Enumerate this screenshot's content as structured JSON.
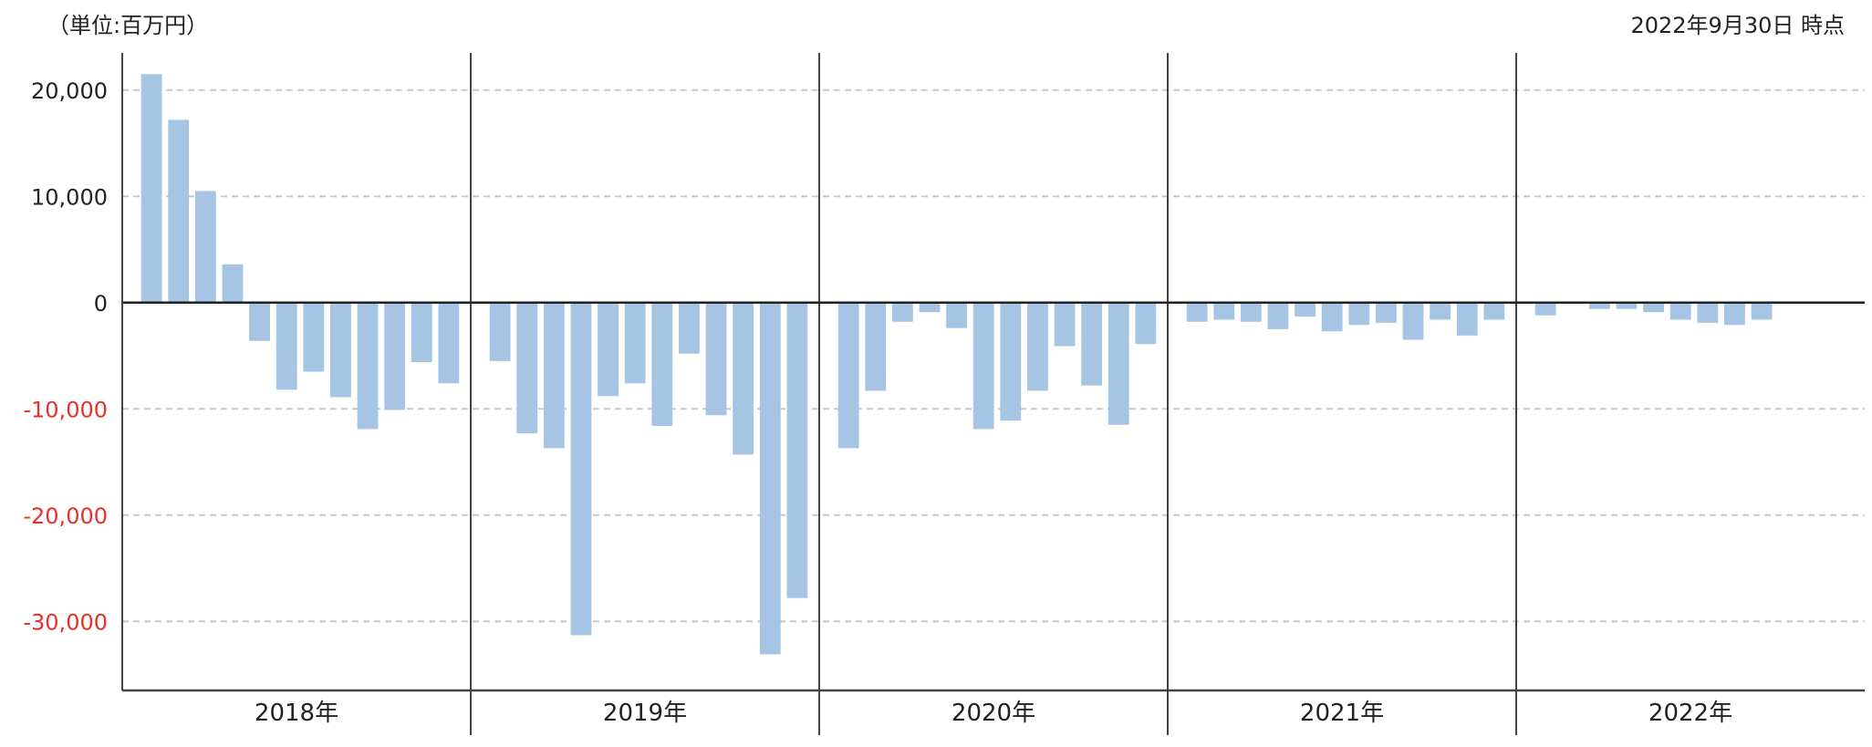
{
  "header": {
    "unit_label": "（単位:百万円）",
    "as_of_label": "2022年9月30日 時点"
  },
  "colors": {
    "bar": "#a6c4e3",
    "negative_tick": "#e8302a",
    "positive_tick": "#222222",
    "grid": "#c8c8c8",
    "axis": "#444444"
  },
  "chart_data": {
    "type": "bar",
    "ylim": [
      -36500,
      23500
    ],
    "yticks": [
      20000,
      10000,
      0,
      -10000,
      -20000,
      -30000
    ],
    "ytick_labels": [
      "20,000",
      "10,000",
      "0",
      "-10,000",
      "-20,000",
      "-30,000"
    ],
    "grid": "horizontal dashed",
    "years": [
      {
        "label": "2018年",
        "values": [
          21500,
          17200,
          10500,
          3600,
          -3600,
          -8200,
          -6500,
          -8900,
          -11900,
          -10100,
          -5600,
          -7600
        ]
      },
      {
        "label": "2019年",
        "values": [
          -5500,
          -12300,
          -13700,
          -31300,
          -8800,
          -7600,
          -11600,
          -4800,
          -10600,
          -14300,
          -33100,
          -27800
        ]
      },
      {
        "label": "2020年",
        "values": [
          -13700,
          -8300,
          -1800,
          -900,
          -2400,
          -11900,
          -11100,
          -8300,
          -4100,
          -7800,
          -11500,
          -3900
        ]
      },
      {
        "label": "2021年",
        "values": [
          -1800,
          -1600,
          -1800,
          -2500,
          -1300,
          -2700,
          -2100,
          -1900,
          -3500,
          -1600,
          -3100,
          -1600
        ]
      },
      {
        "label": "2022年",
        "values": [
          -1200,
          null,
          -600,
          -600,
          -900,
          -1600,
          -1900,
          -2100,
          -1600,
          null,
          null,
          null
        ]
      }
    ]
  }
}
